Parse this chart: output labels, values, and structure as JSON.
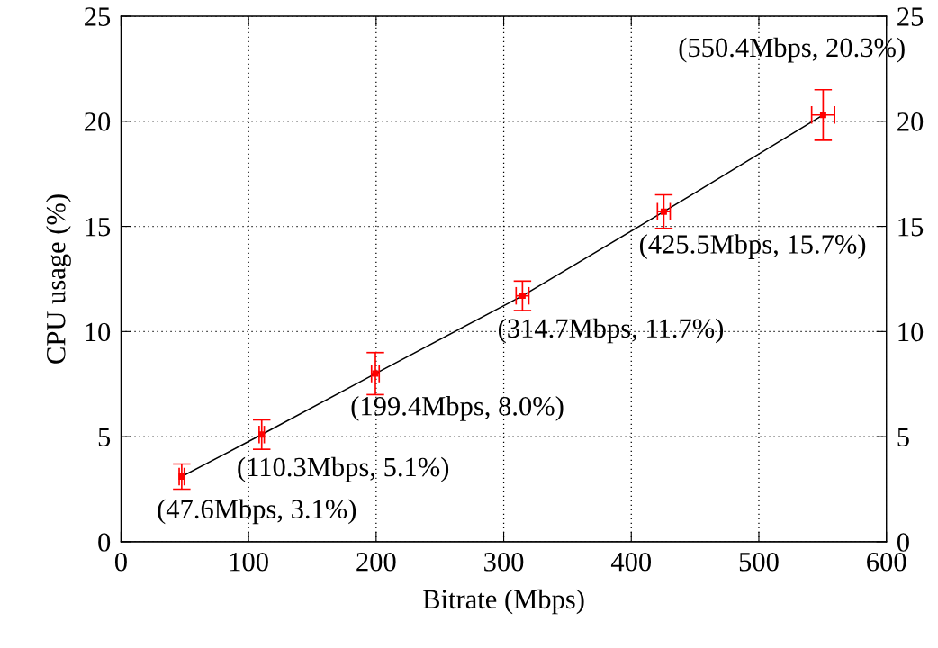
{
  "chart_data": {
    "type": "scatter",
    "xlabel": "Bitrate (Mbps)",
    "ylabel": "CPU usage (%)",
    "x": [
      47.6,
      110.3,
      199.4,
      314.7,
      425.5,
      550.4
    ],
    "series": [
      {
        "color": "#ff0000",
        "values": [
          3.1,
          5.1,
          8.0,
          11.7,
          15.7,
          20.3
        ],
        "errors": [
          0.6,
          0.7,
          1.0,
          0.7,
          0.8,
          1.2
        ],
        "xerrors": [
          2,
          2,
          3,
          5,
          5,
          9
        ],
        "marker": "square"
      },
      {
        "type": "line",
        "color": "#000000",
        "values": [
          3.1,
          5.1,
          8.0,
          11.7,
          15.7,
          20.3
        ],
        "line_style": "solid"
      }
    ],
    "annotations": [
      {
        "text": "(47.6Mbps, 3.1%)",
        "x": 47.6,
        "y": 3.1
      },
      {
        "text": "(110.3Mbps, 5.1%)",
        "x": 110.3,
        "y": 5.1
      },
      {
        "text": "(199.4Mbps, 8.0%)",
        "x": 199.4,
        "y": 8.0
      },
      {
        "text": "(314.7Mbps, 11.7%)",
        "x": 314.7,
        "y": 11.7
      },
      {
        "text": "(425.5Mbps, 15.7%)",
        "x": 425.5,
        "y": 15.7
      },
      {
        "text": "(550.4Mbps, 20.3%)",
        "x": 550.4,
        "y": 20.3
      }
    ],
    "xlim": [
      0,
      600
    ],
    "xticks": [
      0,
      100,
      200,
      300,
      400,
      500,
      600
    ],
    "ylim": [
      0,
      25
    ],
    "yticks": [
      0,
      5,
      10,
      15,
      20,
      25
    ],
    "y2lim": [
      0,
      25
    ],
    "y2ticks": [
      0,
      5,
      10,
      15,
      20,
      25
    ],
    "grid": true
  }
}
